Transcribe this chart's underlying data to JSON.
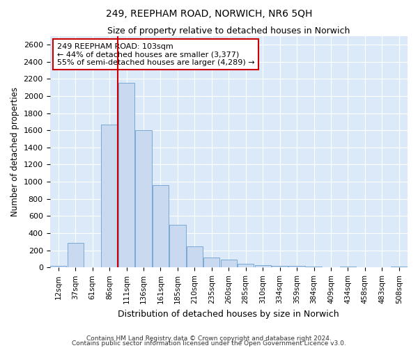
{
  "title": "249, REEPHAM ROAD, NORWICH, NR6 5QH",
  "subtitle": "Size of property relative to detached houses in Norwich",
  "xlabel": "Distribution of detached houses by size in Norwich",
  "ylabel": "Number of detached properties",
  "bar_color": "#c8d9f0",
  "bar_edge_color": "#6aa0d0",
  "background_color": "#dce9f8",
  "grid_color": "#ffffff",
  "fig_background": "#ffffff",
  "bin_labels": [
    "12sqm",
    "37sqm",
    "61sqm",
    "86sqm",
    "111sqm",
    "136sqm",
    "161sqm",
    "185sqm",
    "210sqm",
    "235sqm",
    "260sqm",
    "285sqm",
    "310sqm",
    "334sqm",
    "359sqm",
    "384sqm",
    "409sqm",
    "434sqm",
    "458sqm",
    "483sqm",
    "508sqm"
  ],
  "bar_heights": [
    15,
    290,
    5,
    1670,
    2150,
    1600,
    960,
    500,
    250,
    120,
    95,
    45,
    25,
    22,
    18,
    8,
    5,
    8,
    3,
    3,
    12
  ],
  "property_size_bin": 4,
  "red_line_color": "#cc0000",
  "annotation_text": "249 REEPHAM ROAD: 103sqm\n← 44% of detached houses are smaller (3,377)\n55% of semi-detached houses are larger (4,289) →",
  "annotation_box_color": "#ffffff",
  "annotation_box_edge": "#cc0000",
  "ylim": [
    0,
    2700
  ],
  "yticks": [
    0,
    200,
    400,
    600,
    800,
    1000,
    1200,
    1400,
    1600,
    1800,
    2000,
    2200,
    2400,
    2600
  ],
  "footnote1": "Contains HM Land Registry data © Crown copyright and database right 2024.",
  "footnote2": "Contains public sector information licensed under the Open Government Licence v3.0."
}
